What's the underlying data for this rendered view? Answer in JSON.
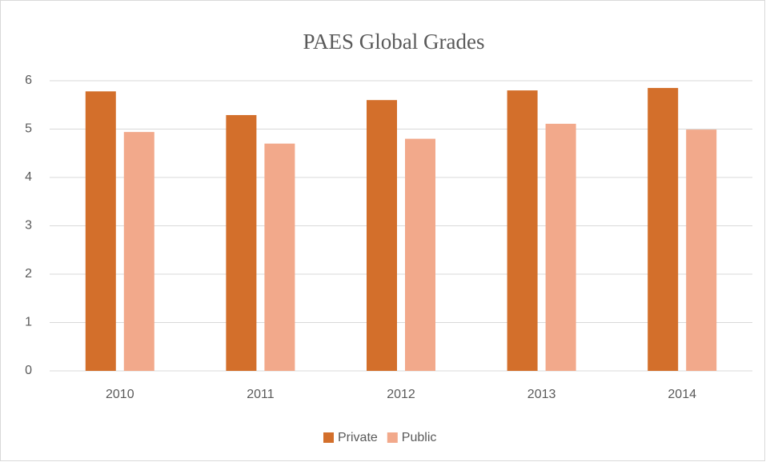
{
  "chart_data": {
    "type": "bar",
    "title": "PAES Global Grades",
    "categories": [
      "2010",
      "2011",
      "2012",
      "2013",
      "2014"
    ],
    "series": [
      {
        "name": "Private",
        "color": "#d36f2b",
        "values": [
          5.78,
          5.29,
          5.6,
          5.8,
          5.85
        ]
      },
      {
        "name": "Public",
        "color": "#f2a98b",
        "values": [
          4.94,
          4.7,
          4.8,
          5.11,
          4.99
        ]
      }
    ],
    "ylim": [
      0,
      6
    ],
    "yticks": [
      0,
      1,
      2,
      3,
      4,
      5,
      6
    ],
    "grid": true,
    "legend": "bottom"
  }
}
